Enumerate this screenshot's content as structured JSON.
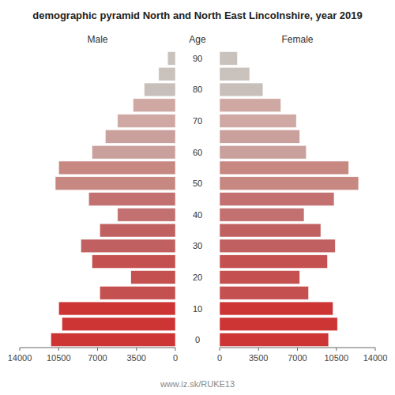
{
  "chart_data": {
    "type": "bar",
    "orientation": "horizontal",
    "title": "demographic pyramid North and North East Lincolnshire, year 2019",
    "ylabel": "Age",
    "footer": "www.iz.sk/RUKE13",
    "categories": [
      0,
      null,
      10,
      null,
      20,
      null,
      30,
      null,
      40,
      null,
      50,
      null,
      60,
      null,
      70,
      null,
      80,
      null,
      90
    ],
    "series": [
      {
        "name": "Male",
        "values": [
          11200,
          10200,
          10500,
          6800,
          4000,
          7500,
          8500,
          6800,
          5200,
          7800,
          10800,
          10500,
          7500,
          6300,
          5200,
          3800,
          2800,
          1500,
          700
        ],
        "colors": [
          "#cd3535",
          "#cd3535",
          "#cd3535",
          "#c55050",
          "#c55050",
          "#c55050",
          "#c06060",
          "#c06060",
          "#c27070",
          "#c27070",
          "#c68880",
          "#c68880",
          "#caa09c",
          "#caa09c",
          "#cfa8a4",
          "#cfa8a4",
          "#c8bfba",
          "#c8c1bc",
          "#c8c1bc"
        ]
      },
      {
        "name": "Female",
        "values": [
          9800,
          10600,
          10200,
          8000,
          7200,
          9700,
          10400,
          9100,
          7600,
          10300,
          12500,
          11600,
          7800,
          7200,
          6900,
          5500,
          3900,
          2700,
          1600
        ],
        "colors": [
          "#cd3535",
          "#cd3535",
          "#cd3535",
          "#c55050",
          "#c55050",
          "#c55050",
          "#c06060",
          "#c06060",
          "#c27070",
          "#c27070",
          "#c68880",
          "#c68880",
          "#caa09c",
          "#caa09c",
          "#cfa8a4",
          "#cfa8a4",
          "#c8bfba",
          "#c8c1bc",
          "#c8c1bc"
        ]
      }
    ],
    "xlim": [
      0,
      14000
    ],
    "xticks": [
      0,
      3500,
      7000,
      10500,
      14000
    ],
    "grid": false
  }
}
